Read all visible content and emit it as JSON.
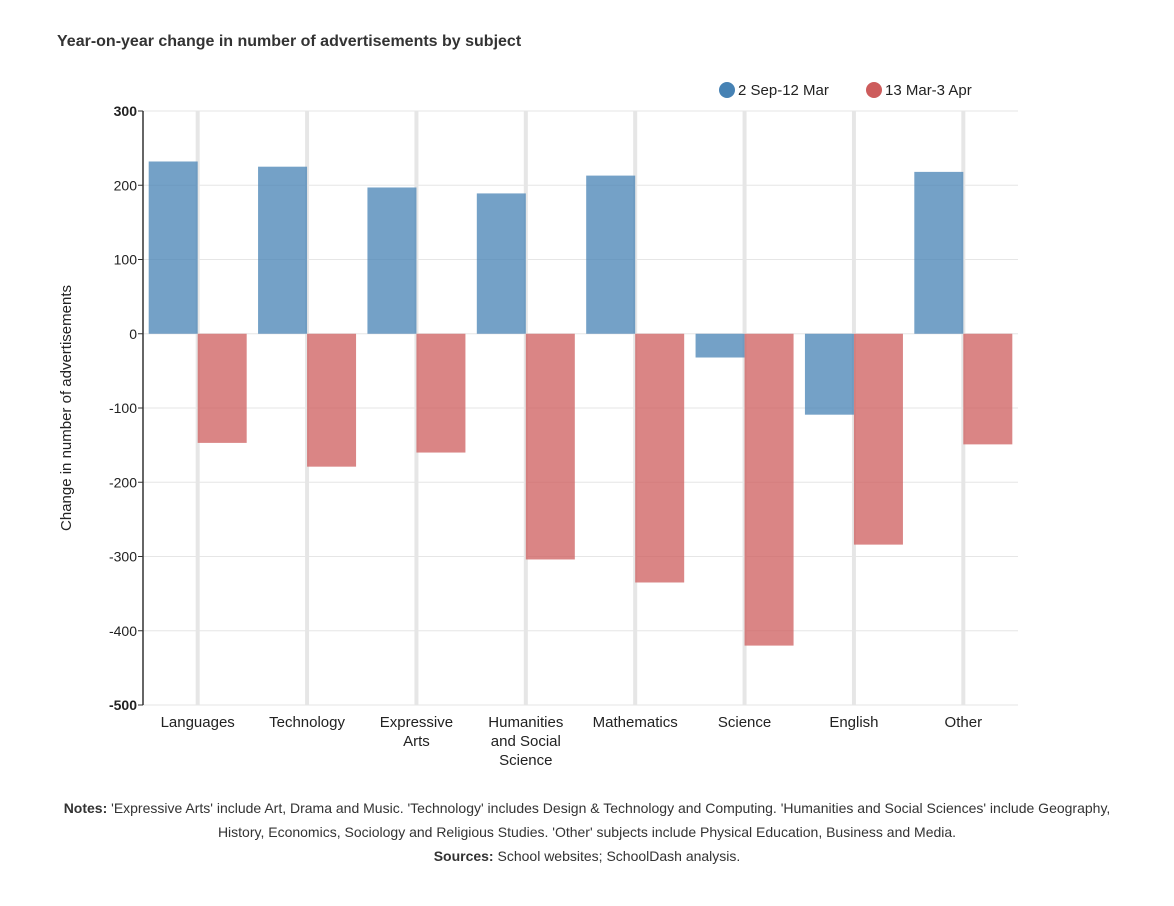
{
  "chart_data": {
    "type": "bar",
    "title": "Year-on-year change in number of advertisements by subject",
    "ylabel": "Change in number of advertisements",
    "xlabel": "",
    "ylim": [
      -500,
      300
    ],
    "yticks": [
      300,
      200,
      100,
      0,
      -100,
      -200,
      -300,
      -400,
      -500
    ],
    "grid": true,
    "legend_position": "top-right",
    "categories": [
      [
        "Languages"
      ],
      [
        "Technology"
      ],
      [
        "Expressive",
        "Arts"
      ],
      [
        "Humanities",
        "and Social",
        "Science"
      ],
      [
        "Mathematics"
      ],
      [
        "Science"
      ],
      [
        "English"
      ],
      [
        "Other"
      ]
    ],
    "series": [
      {
        "name": "2 Sep-12 Mar",
        "color": "#4682b4",
        "values": [
          232,
          225,
          197,
          189,
          213,
          -32,
          -109,
          218
        ]
      },
      {
        "name": "13 Mar-3 Apr",
        "color": "#cd5c5c",
        "values": [
          -147,
          -179,
          -160,
          -304,
          -335,
          -420,
          -284,
          -149
        ]
      }
    ]
  },
  "notes": {
    "notes_label": "Notes:",
    "notes_text": " 'Expressive Arts' include Art, Drama and Music. 'Technology' includes Design & Technology and Computing. 'Humanities and Social Sciences' include Geography, History, Economics, Sociology and Religious Studies. 'Other' subjects include Physical Education, Business and Media.",
    "sources_label": "Sources:",
    "sources_text": " School websites; SchoolDash analysis."
  }
}
